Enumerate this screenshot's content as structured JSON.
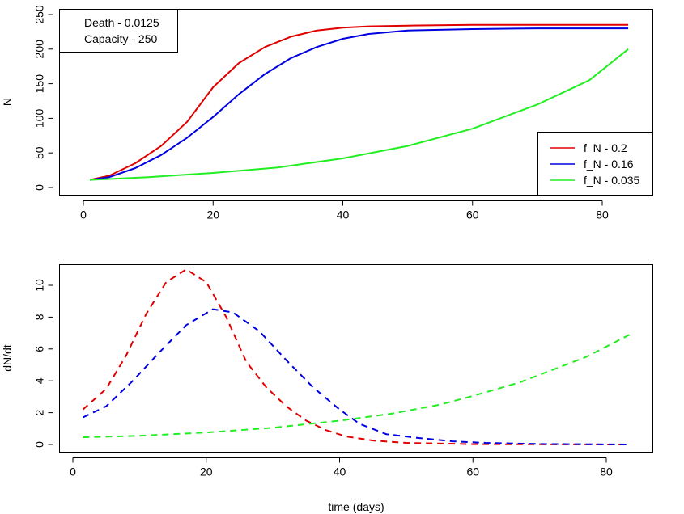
{
  "colors": {
    "red": "#e00000",
    "blue": "#0000e0",
    "green": "#22ee22"
  },
  "chart_data": [
    {
      "type": "line",
      "title": "",
      "xlabel": "",
      "ylabel": "N",
      "xlim": [
        -2,
        86
      ],
      "ylim": [
        -6,
        256
      ],
      "x_ticks": [
        0,
        20,
        40,
        60,
        80
      ],
      "y_ticks": [
        0,
        50,
        100,
        150,
        200,
        250
      ],
      "grid": false,
      "line_style": "solid",
      "annotation": {
        "position": "top-left",
        "lines": [
          "Death -  0.0125",
          "Capacity -  250"
        ]
      },
      "legend": {
        "position": "bottom-right"
      },
      "series": [
        {
          "name": "f_N - 0.2",
          "color": "#e00000",
          "points": [
            [
              1,
              11
            ],
            [
              4,
              17
            ],
            [
              8,
              35
            ],
            [
              12,
              60
            ],
            [
              16,
              95
            ],
            [
              20,
              145
            ],
            [
              24,
              180
            ],
            [
              28,
              203
            ],
            [
              32,
              218
            ],
            [
              36,
              227
            ],
            [
              40,
              231
            ],
            [
              44,
              233
            ],
            [
              50,
              234
            ],
            [
              60,
              235
            ],
            [
              70,
              235
            ],
            [
              84,
              235
            ]
          ]
        },
        {
          "name": "f_N - 0.16",
          "color": "#0000e0",
          "points": [
            [
              1,
              11
            ],
            [
              4,
              15
            ],
            [
              8,
              28
            ],
            [
              12,
              47
            ],
            [
              16,
              72
            ],
            [
              20,
              102
            ],
            [
              24,
              135
            ],
            [
              28,
              164
            ],
            [
              32,
              187
            ],
            [
              36,
              203
            ],
            [
              40,
              215
            ],
            [
              44,
              222
            ],
            [
              50,
              227
            ],
            [
              60,
              229
            ],
            [
              70,
              230
            ],
            [
              84,
              230
            ]
          ]
        },
        {
          "name": "f_N - 0.035",
          "color": "#22ee22",
          "points": [
            [
              1,
              11
            ],
            [
              10,
              15
            ],
            [
              20,
              21
            ],
            [
              30,
              29
            ],
            [
              40,
              42
            ],
            [
              50,
              60
            ],
            [
              60,
              85
            ],
            [
              70,
              120
            ],
            [
              78,
              155
            ],
            [
              84,
              200
            ]
          ]
        }
      ]
    },
    {
      "type": "line",
      "title": "",
      "xlabel": "time (days)",
      "ylabel": "dN/dt",
      "xlim": [
        -2,
        86
      ],
      "ylim": [
        -0.5,
        11.2
      ],
      "x_ticks": [
        0,
        20,
        40,
        60,
        80
      ],
      "y_ticks": [
        0,
        2,
        4,
        6,
        8,
        10
      ],
      "grid": false,
      "line_style": "dashed",
      "series": [
        {
          "name": "",
          "color": "#e00000",
          "points": [
            [
              1.5,
              2.2
            ],
            [
              5,
              3.5
            ],
            [
              8,
              5.6
            ],
            [
              11,
              8.2
            ],
            [
              14,
              10.2
            ],
            [
              17,
              11.0
            ],
            [
              20,
              10.2
            ],
            [
              23,
              8.0
            ],
            [
              26,
              5.2
            ],
            [
              29,
              3.6
            ],
            [
              32,
              2.4
            ],
            [
              35,
              1.5
            ],
            [
              38,
              0.9
            ],
            [
              41,
              0.5
            ],
            [
              45,
              0.25
            ],
            [
              50,
              0.1
            ],
            [
              60,
              0.02
            ],
            [
              70,
              0.01
            ],
            [
              83.5,
              0.0
            ]
          ]
        },
        {
          "name": "",
          "color": "#0000e0",
          "points": [
            [
              1.5,
              1.7
            ],
            [
              5,
              2.4
            ],
            [
              9,
              4.0
            ],
            [
              13,
              5.8
            ],
            [
              17,
              7.5
            ],
            [
              21,
              8.5
            ],
            [
              24,
              8.3
            ],
            [
              28,
              7.1
            ],
            [
              32,
              5.3
            ],
            [
              36,
              3.6
            ],
            [
              40,
              2.2
            ],
            [
              43,
              1.3
            ],
            [
              47,
              0.65
            ],
            [
              52,
              0.4
            ],
            [
              57,
              0.2
            ],
            [
              62,
              0.1
            ],
            [
              70,
              0.03
            ],
            [
              83.5,
              0.0
            ]
          ]
        },
        {
          "name": "",
          "color": "#22ee22",
          "points": [
            [
              1.5,
              0.45
            ],
            [
              10,
              0.55
            ],
            [
              20,
              0.75
            ],
            [
              30,
              1.05
            ],
            [
              40,
              1.5
            ],
            [
              48,
              1.95
            ],
            [
              55,
              2.5
            ],
            [
              60,
              3.05
            ],
            [
              67,
              3.9
            ],
            [
              72,
              4.7
            ],
            [
              77,
              5.5
            ],
            [
              83.5,
              6.9
            ]
          ]
        }
      ]
    }
  ]
}
